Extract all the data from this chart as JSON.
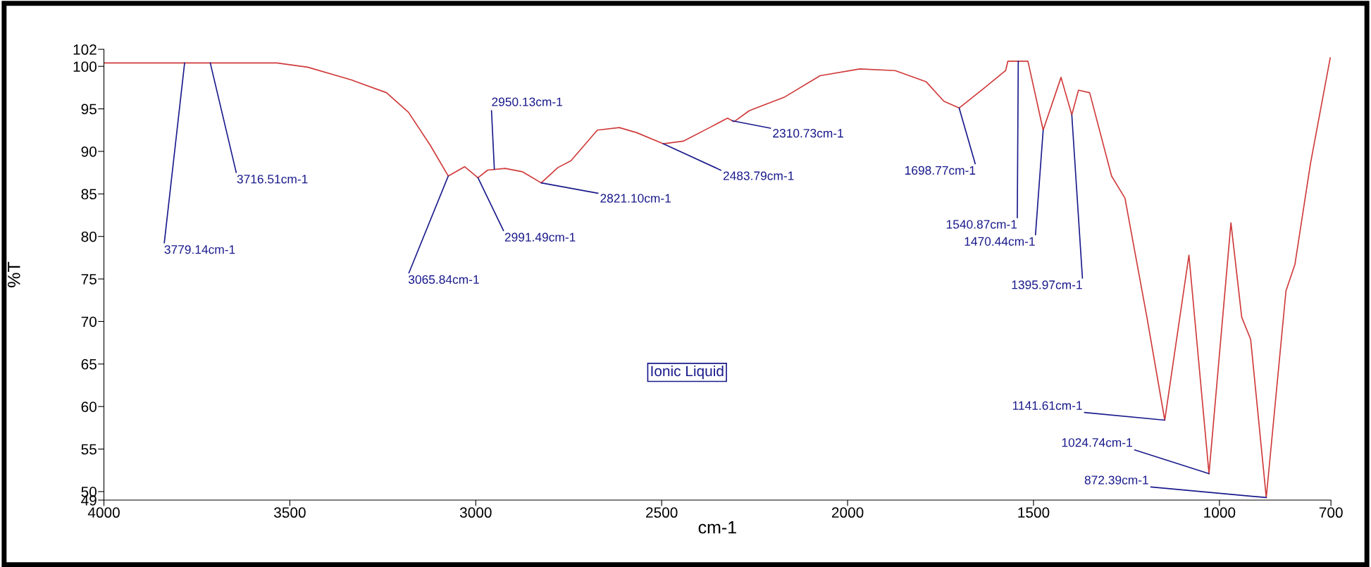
{
  "chart_data": {
    "type": "line",
    "xlabel": "cm-1",
    "ylabel": "%T",
    "x": [
      4000,
      3783,
      3714,
      3535,
      3452,
      3334,
      3240,
      3181,
      3122,
      3074,
      3030,
      2994,
      2968,
      2921,
      2874,
      2824,
      2779,
      2744,
      2673,
      2614,
      2567,
      2496,
      2442,
      2371,
      2323,
      2305,
      2264,
      2169,
      2074,
      1967,
      1872,
      1789,
      1741,
      1700,
      1634,
      1575,
      1569,
      1515,
      1474,
      1426,
      1397,
      1379,
      1349,
      1290,
      1254,
      1195,
      1147,
      1082,
      1028,
      969,
      940,
      916,
      874,
      821,
      797,
      755,
      702
    ],
    "series": [
      {
        "color": "#d03a3a",
        "values": [
          100.4,
          100.4,
          100.4,
          100.4,
          99.9,
          98.4,
          96.9,
          94.6,
          90.7,
          87.1,
          88.2,
          86.9,
          87.8,
          88.0,
          87.6,
          86.3,
          88.1,
          88.9,
          92.5,
          92.8,
          92.2,
          90.9,
          91.2,
          92.8,
          93.9,
          93.5,
          94.8,
          96.4,
          98.9,
          99.7,
          99.5,
          98.2,
          95.9,
          95.1,
          97.4,
          99.5,
          100.6,
          100.6,
          92.5,
          98.7,
          94.3,
          97.2,
          96.9,
          87.1,
          84.5,
          70.5,
          58.4,
          77.8,
          52.1,
          81.6,
          70.5,
          67.9,
          49.3,
          73.6,
          76.7,
          88.6,
          101.0
        ]
      }
    ],
    "xlim": [
      4000,
      700
    ],
    "xticks": [
      4000,
      3500,
      3000,
      2500,
      2000,
      1500,
      1000,
      700
    ],
    "ylim": [
      49,
      102
    ],
    "yticks": [
      49,
      50,
      55,
      60,
      65,
      70,
      75,
      80,
      85,
      90,
      95,
      100,
      102
    ],
    "grid": false,
    "legend": false,
    "marker": "none",
    "line_style": "solid",
    "annotations": [
      {
        "text": "3779.14cm-1",
        "x": 3783,
        "y": 100.4
      },
      {
        "text": "3716.51cm-1",
        "x": 3714,
        "y": 100.4
      },
      {
        "text": "3065.84cm-1",
        "x": 3074,
        "y": 87.1
      },
      {
        "text": "2991.49cm-1",
        "x": 2994,
        "y": 86.9
      },
      {
        "text": "2950.13cm-1",
        "x": 2950,
        "y": 87.9
      },
      {
        "text": "2821.10cm-1",
        "x": 2824,
        "y": 86.3
      },
      {
        "text": "2483.79cm-1",
        "x": 2496,
        "y": 90.9
      },
      {
        "text": "2310.73cm-1",
        "x": 2310,
        "y": 93.6
      },
      {
        "text": "1698.77cm-1",
        "x": 1700,
        "y": 95.1
      },
      {
        "text": "1540.87cm-1",
        "x": 1541,
        "y": 100.6
      },
      {
        "text": "1470.44cm-1",
        "x": 1474,
        "y": 92.5
      },
      {
        "text": "1395.97cm-1",
        "x": 1397,
        "y": 94.3
      },
      {
        "text": "1141.61cm-1",
        "x": 1147,
        "y": 58.4
      },
      {
        "text": "1024.74cm-1",
        "x": 1028,
        "y": 52.1
      },
      {
        "text": "872.39cm-1",
        "x": 874,
        "y": 49.3
      },
      "Ionic Liquid"
    ]
  }
}
